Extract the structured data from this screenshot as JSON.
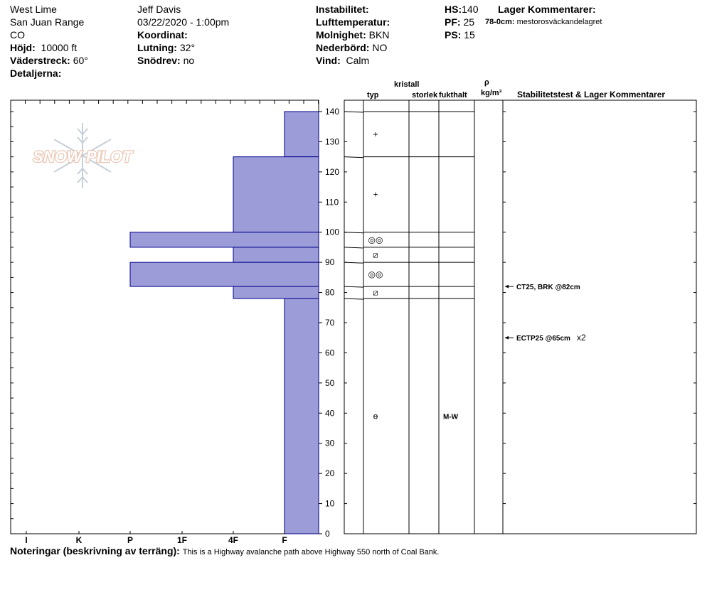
{
  "header": {
    "location": "West Lime",
    "range": "San Juan Range",
    "state": "CO",
    "elevation_label": "Höjd:",
    "elevation": "10000 ft",
    "aspect_label": "Väderstreck:",
    "aspect": "60°",
    "details_label": "Detaljerna:",
    "observer": "Jeff Davis",
    "datetime": "03/22/2020 - 1:00pm",
    "coord_label": "Koordinat:",
    "slope_label": "Lutning:",
    "slope": "32°",
    "drift_label": "Snödrev:",
    "drift": "no",
    "instability_label": "Instabilitet:",
    "airtemp_label": "Lufttemperatur:",
    "sky_label": "Molnighet:",
    "sky": "BKN",
    "precip_label": "Nederbörd:",
    "precip": "NO",
    "wind_label": "Vind:",
    "wind": "Calm",
    "hs_label": "HS:",
    "hs": "140",
    "pf_label": "PF:",
    "pf": "25",
    "ps_label": "PS:",
    "ps": "15",
    "layer_comments_label": "Lager Kommentarer:",
    "layer_comment_depth": "78-0cm:",
    "layer_comment_text": "mestorosväckandelagret"
  },
  "columns": {
    "kristall": "kristall",
    "typ": "typ",
    "storlek": "storlek",
    "fukthalt": "fukthalt",
    "rho": "ρ",
    "density_unit": "kg/m³",
    "stability": "Stabilitetstest & Lager Kommentarer"
  },
  "logo_text": "SNOW PILOT",
  "notes_label": "Noteringar (beskrivning av terräng):",
  "notes": "This is a Highway avalanche path above Highway 550 north of Coal Bank.",
  "chart_data": {
    "type": "bar",
    "orientation": "horizontal",
    "y_axis": {
      "min": 0,
      "max": 140,
      "ticks": [
        0,
        10,
        20,
        30,
        40,
        50,
        60,
        70,
        80,
        90,
        100,
        110,
        120,
        130,
        140
      ]
    },
    "hardness_scale": [
      "I",
      "K",
      "P",
      "1F",
      "4F",
      "F"
    ],
    "layers": [
      {
        "top": 140,
        "bottom": 125,
        "hardness": "F"
      },
      {
        "top": 125,
        "bottom": 100,
        "hardness": "4F"
      },
      {
        "top": 100,
        "bottom": 95,
        "hardness": "P"
      },
      {
        "top": 95,
        "bottom": 90,
        "hardness": "4F"
      },
      {
        "top": 90,
        "bottom": 82,
        "hardness": "P"
      },
      {
        "top": 82,
        "bottom": 78,
        "hardness": "4F"
      },
      {
        "top": 78,
        "bottom": 0,
        "hardness": "F"
      }
    ],
    "boundaries": [
      140,
      125,
      100,
      95,
      90,
      82,
      78
    ],
    "crystal_symbols": [
      {
        "depth": 132.5,
        "symbol": "+"
      },
      {
        "depth": 112.5,
        "symbol": "+"
      },
      {
        "depth": 97.5,
        "symbol": "◎◎"
      },
      {
        "depth": 92.5,
        "symbol": "⧄"
      },
      {
        "depth": 86,
        "symbol": "◎◎"
      },
      {
        "depth": 80,
        "symbol": "⧄"
      },
      {
        "depth": 39,
        "symbol": "ɵ"
      }
    ],
    "moisture": [
      {
        "depth": 39,
        "value": "M-W"
      }
    ],
    "stability_tests": [
      {
        "depth": 82,
        "label": "CT25, BRK @82cm",
        "extra": ""
      },
      {
        "depth": 65,
        "label": "ECTP25 @65cm",
        "extra": "x2"
      }
    ]
  }
}
